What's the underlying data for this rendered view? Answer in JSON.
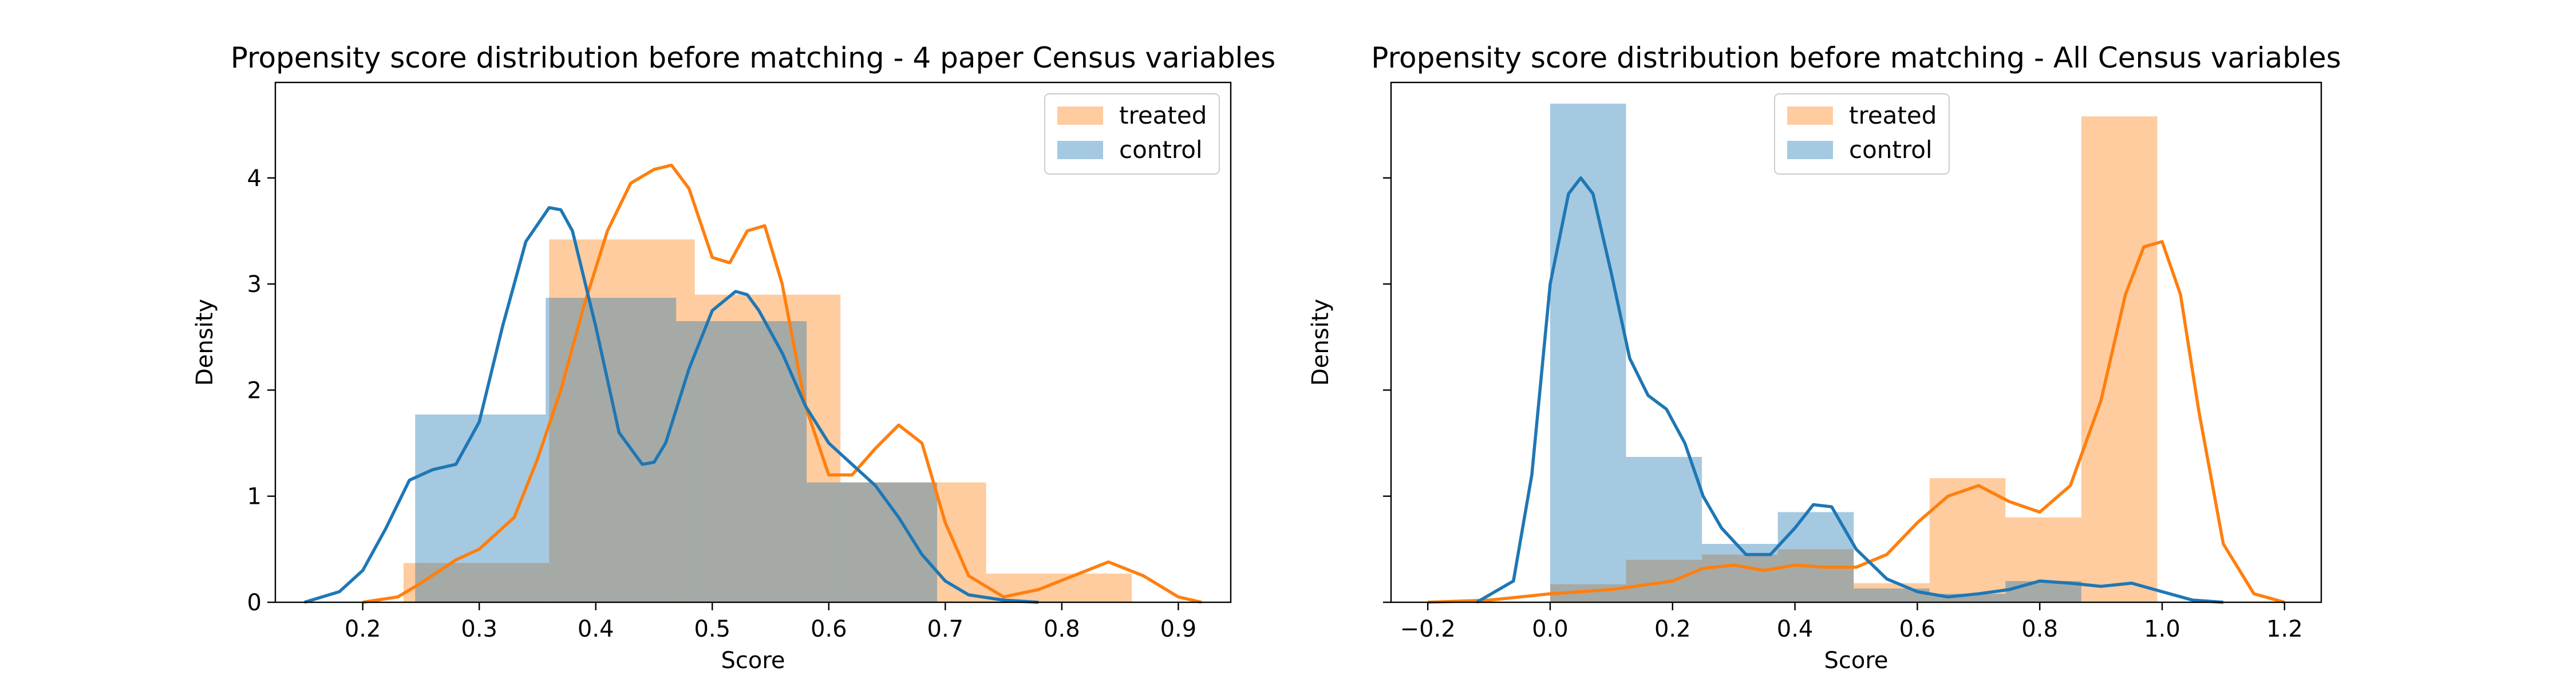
{
  "colors": {
    "treated": "#ff7f0e",
    "control": "#1f77b4",
    "axis": "#000000"
  },
  "chart_data": [
    {
      "type": "histogram-kde",
      "title": "Propensity score distribution before matching - 4 paper Census variables",
      "xlabel": "Score",
      "ylabel": "Density",
      "xlim": [
        0.125,
        0.945
      ],
      "ylim": [
        0,
        4.9
      ],
      "xticks": [
        0.2,
        0.3,
        0.4,
        0.5,
        0.6,
        0.7,
        0.8,
        0.9
      ],
      "xtick_labels": [
        "0.2",
        "0.3",
        "0.4",
        "0.5",
        "0.6",
        "0.7",
        "0.8",
        "0.9"
      ],
      "yticks": [
        0,
        1,
        2,
        3,
        4
      ],
      "ytick_labels": [
        "0",
        "1",
        "2",
        "3",
        "4"
      ],
      "grid": false,
      "legend_position": "top-right",
      "series": [
        {
          "name": "treated",
          "hist_edges": [
            0.235,
            0.36,
            0.485,
            0.61,
            0.735,
            0.86
          ],
          "hist_values": [
            0.37,
            3.42,
            2.9,
            1.13,
            0.27
          ],
          "kde_x": [
            0.2,
            0.23,
            0.25,
            0.28,
            0.3,
            0.33,
            0.35,
            0.37,
            0.39,
            0.41,
            0.43,
            0.45,
            0.465,
            0.48,
            0.5,
            0.515,
            0.53,
            0.545,
            0.56,
            0.58,
            0.6,
            0.62,
            0.64,
            0.66,
            0.68,
            0.7,
            0.72,
            0.75,
            0.78,
            0.81,
            0.84,
            0.87,
            0.9,
            0.92
          ],
          "kde_y": [
            0.0,
            0.05,
            0.18,
            0.4,
            0.5,
            0.8,
            1.35,
            2.0,
            2.8,
            3.5,
            3.95,
            4.08,
            4.12,
            3.9,
            3.25,
            3.2,
            3.5,
            3.55,
            3.0,
            1.85,
            1.2,
            1.2,
            1.45,
            1.67,
            1.5,
            0.75,
            0.25,
            0.05,
            0.12,
            0.25,
            0.38,
            0.25,
            0.05,
            0.0
          ]
        },
        {
          "name": "control",
          "hist_edges": [
            0.245,
            0.357,
            0.469,
            0.581,
            0.693
          ],
          "hist_values": [
            1.77,
            2.87,
            2.65,
            1.13
          ],
          "kde_x": [
            0.15,
            0.18,
            0.2,
            0.22,
            0.24,
            0.26,
            0.28,
            0.3,
            0.32,
            0.34,
            0.36,
            0.37,
            0.38,
            0.4,
            0.42,
            0.44,
            0.45,
            0.46,
            0.48,
            0.5,
            0.52,
            0.53,
            0.54,
            0.56,
            0.58,
            0.6,
            0.62,
            0.64,
            0.66,
            0.68,
            0.7,
            0.72,
            0.75,
            0.78
          ],
          "kde_y": [
            0.0,
            0.1,
            0.3,
            0.7,
            1.15,
            1.25,
            1.3,
            1.7,
            2.6,
            3.4,
            3.72,
            3.7,
            3.5,
            2.6,
            1.6,
            1.3,
            1.32,
            1.5,
            2.2,
            2.75,
            2.93,
            2.9,
            2.75,
            2.35,
            1.85,
            1.5,
            1.3,
            1.1,
            0.8,
            0.45,
            0.2,
            0.07,
            0.02,
            0.0
          ]
        }
      ]
    },
    {
      "type": "histogram-kde",
      "title": "Propensity score distribution before matching - All Census variables",
      "xlabel": "Score",
      "ylabel": "Density",
      "xlim": [
        -0.26,
        1.26
      ],
      "ylim": [
        0,
        4.9
      ],
      "xticks": [
        -0.2,
        0.0,
        0.2,
        0.4,
        0.6,
        0.8,
        1.0,
        1.2
      ],
      "xtick_labels": [
        "−0.2",
        "0.0",
        "0.2",
        "0.4",
        "0.6",
        "0.8",
        "1.0",
        "1.2"
      ],
      "yticks": [
        0,
        1,
        2,
        3,
        4
      ],
      "ytick_labels": [
        "",
        "",
        "",
        "",
        ""
      ],
      "grid": false,
      "legend_position": "top-center",
      "series": [
        {
          "name": "treated",
          "hist_edges": [
            0.0,
            0.124,
            0.248,
            0.372,
            0.496,
            0.62,
            0.744,
            0.868,
            0.992
          ],
          "hist_values": [
            0.17,
            0.4,
            0.45,
            0.5,
            0.18,
            1.17,
            0.8,
            4.58
          ],
          "kde_x": [
            -0.2,
            -0.1,
            0.0,
            0.1,
            0.2,
            0.25,
            0.3,
            0.35,
            0.4,
            0.45,
            0.5,
            0.55,
            0.6,
            0.65,
            0.7,
            0.75,
            0.8,
            0.85,
            0.9,
            0.94,
            0.97,
            1.0,
            1.03,
            1.06,
            1.1,
            1.15,
            1.2
          ],
          "kde_y": [
            0.0,
            0.02,
            0.08,
            0.12,
            0.2,
            0.32,
            0.35,
            0.3,
            0.35,
            0.33,
            0.33,
            0.45,
            0.75,
            1.0,
            1.1,
            0.95,
            0.85,
            1.1,
            1.9,
            2.9,
            3.35,
            3.4,
            2.9,
            1.8,
            0.55,
            0.08,
            0.0
          ]
        },
        {
          "name": "control",
          "hist_edges": [
            0.0,
            0.124,
            0.248,
            0.372,
            0.496,
            0.62,
            0.744,
            0.868
          ],
          "hist_values": [
            4.7,
            1.37,
            0.55,
            0.85,
            0.13,
            0.08,
            0.2
          ],
          "kde_x": [
            -0.12,
            -0.06,
            -0.03,
            0.0,
            0.03,
            0.05,
            0.07,
            0.1,
            0.13,
            0.16,
            0.19,
            0.22,
            0.25,
            0.28,
            0.32,
            0.36,
            0.4,
            0.43,
            0.46,
            0.5,
            0.55,
            0.6,
            0.65,
            0.7,
            0.75,
            0.8,
            0.85,
            0.9,
            0.95,
            1.0,
            1.05,
            1.1
          ],
          "kde_y": [
            0.0,
            0.2,
            1.2,
            3.0,
            3.85,
            4.0,
            3.85,
            3.1,
            2.3,
            1.95,
            1.82,
            1.5,
            1.0,
            0.7,
            0.45,
            0.45,
            0.7,
            0.92,
            0.9,
            0.5,
            0.22,
            0.1,
            0.05,
            0.08,
            0.12,
            0.2,
            0.18,
            0.15,
            0.18,
            0.1,
            0.02,
            0.0
          ]
        }
      ]
    }
  ]
}
